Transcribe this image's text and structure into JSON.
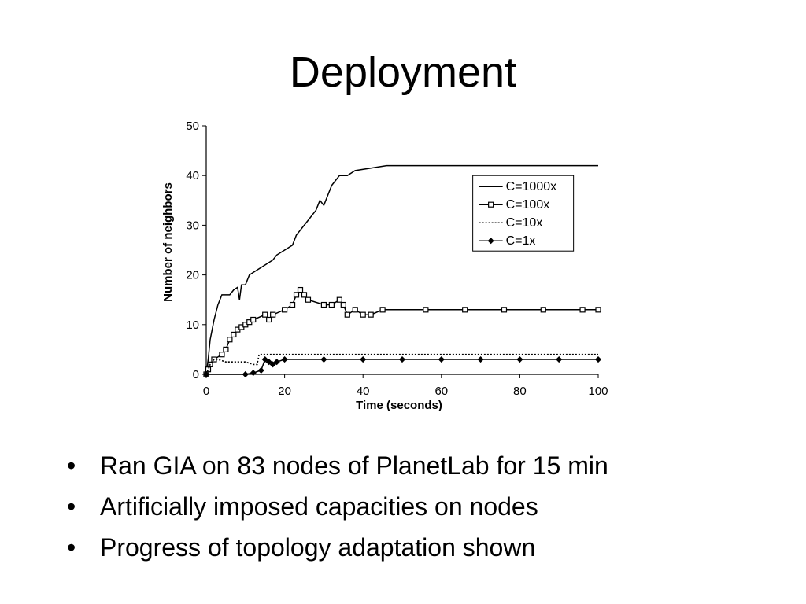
{
  "slide": {
    "title": "Deployment",
    "bullet_char": "•",
    "bullets": [
      "Ran GIA on 83 nodes of PlanetLab for 15 min",
      "Artificially imposed capacities on nodes",
      "Progress of topology adaptation shown"
    ]
  },
  "chart_data": {
    "type": "line",
    "title": "",
    "xlabel": "Time (seconds)",
    "ylabel": "Number of neighbors",
    "xlim": [
      0,
      100
    ],
    "ylim": [
      0,
      50
    ],
    "xticks": [
      0,
      20,
      40,
      60,
      80,
      100
    ],
    "yticks": [
      0,
      10,
      20,
      30,
      40,
      50
    ],
    "grid": false,
    "legend_position": "right",
    "series": [
      {
        "name": "C=1000x",
        "style": "solid",
        "marker": "none",
        "points": [
          [
            0,
            0
          ],
          [
            0.5,
            3
          ],
          [
            1,
            7
          ],
          [
            2,
            11
          ],
          [
            3,
            14
          ],
          [
            4,
            16
          ],
          [
            6,
            16
          ],
          [
            7,
            17
          ],
          [
            8,
            17.5
          ],
          [
            8.5,
            15
          ],
          [
            9,
            18
          ],
          [
            10,
            18
          ],
          [
            11,
            20
          ],
          [
            13,
            21
          ],
          [
            15,
            22
          ],
          [
            17,
            23
          ],
          [
            18,
            24
          ],
          [
            20,
            25
          ],
          [
            22,
            26
          ],
          [
            23,
            28
          ],
          [
            25,
            30
          ],
          [
            26,
            31
          ],
          [
            28,
            33
          ],
          [
            29,
            35
          ],
          [
            30,
            34
          ],
          [
            31,
            36
          ],
          [
            32,
            38
          ],
          [
            33,
            39
          ],
          [
            34,
            40
          ],
          [
            36,
            40
          ],
          [
            38,
            41
          ],
          [
            42,
            41.5
          ],
          [
            46,
            42
          ],
          [
            100,
            42
          ]
        ]
      },
      {
        "name": "C=100x",
        "style": "solid",
        "marker": "square",
        "points": [
          [
            0,
            0
          ],
          [
            0.5,
            1
          ],
          [
            1,
            2
          ],
          [
            2,
            3
          ],
          [
            4,
            4
          ],
          [
            5,
            5
          ],
          [
            6,
            7
          ],
          [
            7,
            8
          ],
          [
            8,
            9
          ],
          [
            9,
            9.5
          ],
          [
            10,
            10
          ],
          [
            11,
            10.5
          ],
          [
            12,
            11
          ],
          [
            15,
            12
          ],
          [
            16,
            11
          ],
          [
            17,
            12
          ],
          [
            20,
            13
          ],
          [
            22,
            14
          ],
          [
            23,
            16
          ],
          [
            24,
            17
          ],
          [
            25,
            16
          ],
          [
            26,
            15
          ],
          [
            30,
            14
          ],
          [
            32,
            14
          ],
          [
            34,
            15
          ],
          [
            35,
            14
          ],
          [
            36,
            12
          ],
          [
            38,
            13
          ],
          [
            40,
            12
          ],
          [
            42,
            12
          ],
          [
            45,
            13
          ],
          [
            56,
            13
          ],
          [
            66,
            13
          ],
          [
            76,
            13
          ],
          [
            86,
            13
          ],
          [
            96,
            13
          ],
          [
            100,
            13
          ]
        ]
      },
      {
        "name": "C=10x",
        "style": "dotted",
        "marker": "none",
        "points": [
          [
            0,
            0
          ],
          [
            1,
            2
          ],
          [
            2,
            3
          ],
          [
            3,
            3
          ],
          [
            5,
            2.5
          ],
          [
            8,
            2.5
          ],
          [
            10,
            2.5
          ],
          [
            12,
            2
          ],
          [
            13,
            2
          ],
          [
            13.5,
            4
          ],
          [
            14,
            4
          ],
          [
            100,
            4
          ]
        ]
      },
      {
        "name": "C=1x",
        "style": "solid",
        "marker": "diamond",
        "points": [
          [
            0,
            0
          ],
          [
            10,
            0
          ],
          [
            12,
            0.3
          ],
          [
            14,
            0.8
          ],
          [
            15,
            3
          ],
          [
            16,
            2.5
          ],
          [
            17,
            2
          ],
          [
            18,
            2.5
          ],
          [
            20,
            3
          ],
          [
            30,
            3
          ],
          [
            40,
            3
          ],
          [
            50,
            3
          ],
          [
            60,
            3
          ],
          [
            70,
            3
          ],
          [
            80,
            3
          ],
          [
            90,
            3
          ],
          [
            100,
            3
          ]
        ]
      }
    ]
  }
}
